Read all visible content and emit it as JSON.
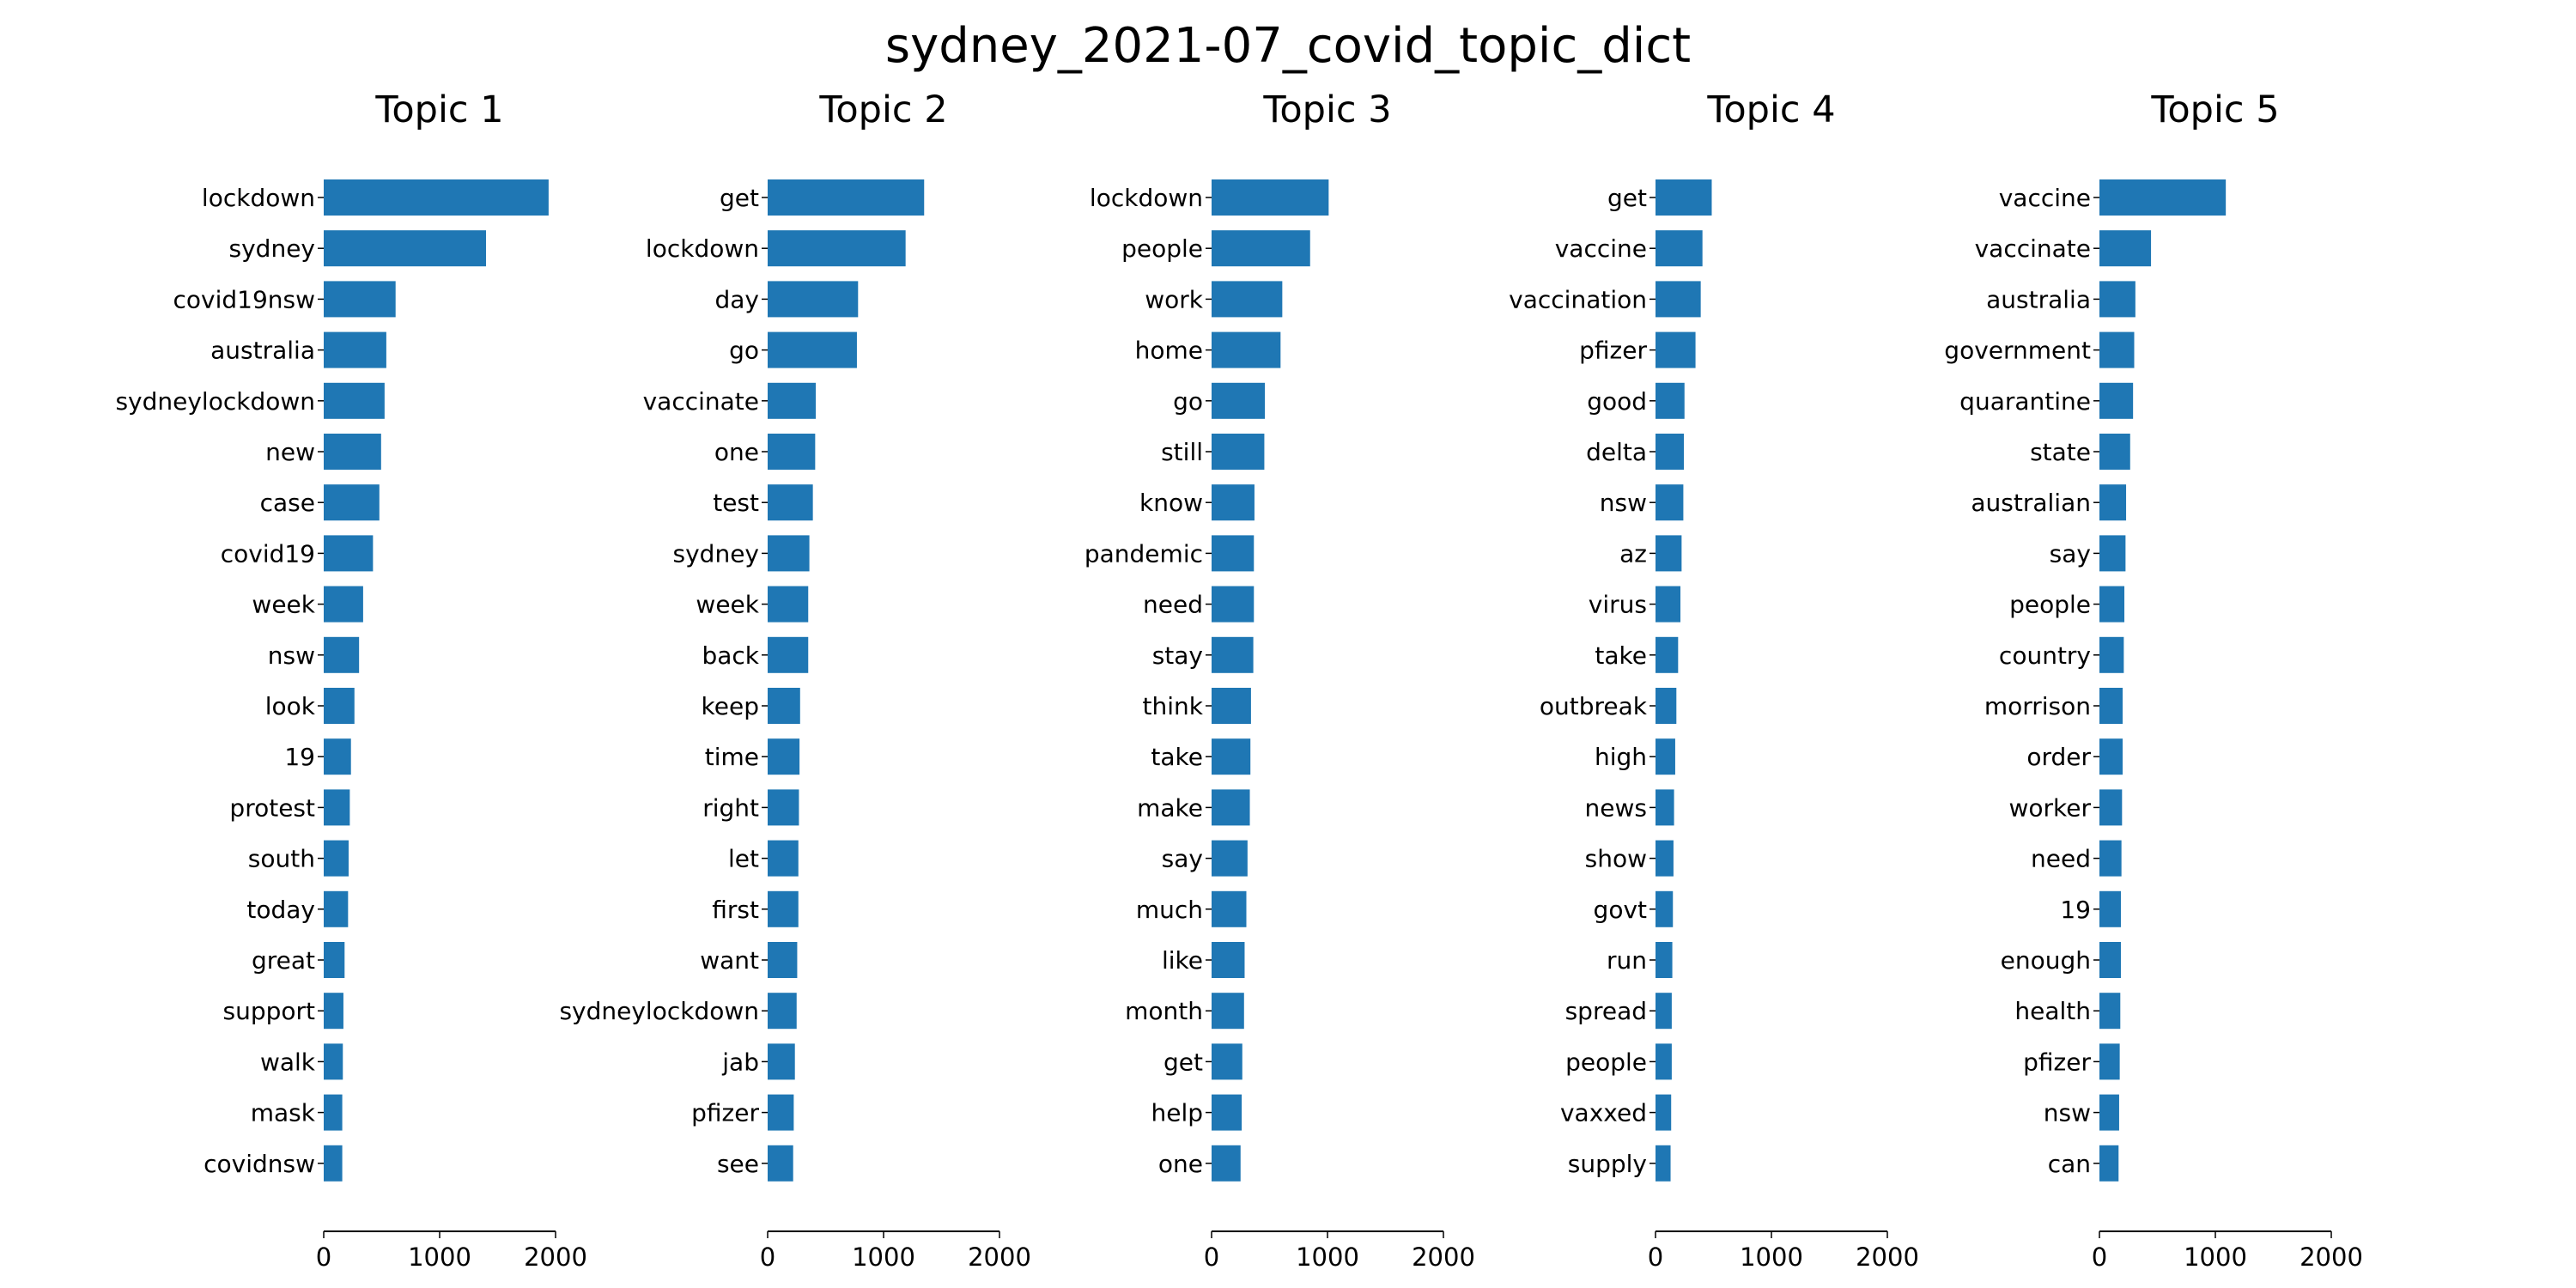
{
  "figure": {
    "title": "sydney_2021-07_covid_topic_dict",
    "bar_color": "#1f77b4"
  },
  "chart_data": [
    {
      "type": "bar",
      "orientation": "horizontal",
      "title": "Topic 1",
      "categories": [
        "lockdown",
        "sydney",
        "covid19nsw",
        "australia",
        "sydneylockdown",
        "new",
        "case",
        "covid19",
        "week",
        "nsw",
        "look",
        "19",
        "protest",
        "south",
        "today",
        "great",
        "support",
        "walk",
        "mask",
        "covidnsw"
      ],
      "values": [
        1940,
        1400,
        620,
        540,
        525,
        495,
        480,
        425,
        340,
        305,
        265,
        235,
        225,
        215,
        210,
        180,
        170,
        165,
        160,
        160
      ],
      "xlim": [
        0,
        2000
      ],
      "xticks": [
        0,
        1000,
        2000
      ],
      "xlabel": "",
      "ylabel": "",
      "grid": false
    },
    {
      "type": "bar",
      "orientation": "horizontal",
      "title": "Topic 2",
      "categories": [
        "get",
        "lockdown",
        "day",
        "go",
        "vaccinate",
        "one",
        "test",
        "sydney",
        "week",
        "back",
        "keep",
        "time",
        "right",
        "let",
        "first",
        "want",
        "sydneylockdown",
        "jab",
        "pfizer",
        "see"
      ],
      "values": [
        1350,
        1190,
        780,
        770,
        415,
        410,
        390,
        360,
        350,
        350,
        280,
        275,
        270,
        265,
        265,
        255,
        250,
        235,
        225,
        220
      ],
      "xlim": [
        0,
        2000
      ],
      "xticks": [
        0,
        1000,
        2000
      ],
      "xlabel": "",
      "ylabel": "",
      "grid": false
    },
    {
      "type": "bar",
      "orientation": "horizontal",
      "title": "Topic 3",
      "categories": [
        "lockdown",
        "people",
        "work",
        "home",
        "go",
        "still",
        "know",
        "pandemic",
        "need",
        "stay",
        "think",
        "take",
        "make",
        "say",
        "much",
        "like",
        "month",
        "get",
        "help",
        "one"
      ],
      "values": [
        1010,
        850,
        610,
        595,
        460,
        455,
        370,
        365,
        365,
        360,
        340,
        335,
        330,
        310,
        300,
        285,
        280,
        265,
        260,
        250
      ],
      "xlim": [
        0,
        2000
      ],
      "xticks": [
        0,
        1000,
        2000
      ],
      "xlabel": "",
      "ylabel": "",
      "grid": false
    },
    {
      "type": "bar",
      "orientation": "horizontal",
      "title": "Topic 4",
      "categories": [
        "get",
        "vaccine",
        "vaccination",
        "pfizer",
        "good",
        "delta",
        "nsw",
        "az",
        "virus",
        "take",
        "outbreak",
        "high",
        "news",
        "show",
        "govt",
        "run",
        "spread",
        "people",
        "vaxxed",
        "supply"
      ],
      "values": [
        485,
        405,
        390,
        345,
        250,
        245,
        240,
        225,
        215,
        195,
        180,
        170,
        160,
        155,
        150,
        145,
        140,
        140,
        135,
        130
      ],
      "xlim": [
        0,
        2000
      ],
      "xticks": [
        0,
        1000,
        2000
      ],
      "xlabel": "",
      "ylabel": "",
      "grid": false
    },
    {
      "type": "bar",
      "orientation": "horizontal",
      "title": "Topic 5",
      "categories": [
        "vaccine",
        "vaccinate",
        "australia",
        "government",
        "quarantine",
        "state",
        "australian",
        "say",
        "people",
        "country",
        "morrison",
        "order",
        "worker",
        "need",
        "19",
        "enough",
        "health",
        "pfizer",
        "nsw",
        "can"
      ],
      "values": [
        1090,
        445,
        310,
        300,
        290,
        265,
        230,
        225,
        215,
        210,
        200,
        200,
        195,
        190,
        185,
        185,
        180,
        175,
        170,
        165
      ],
      "xlim": [
        0,
        2000
      ],
      "xticks": [
        0,
        1000,
        2000
      ],
      "xlabel": "",
      "ylabel": "",
      "grid": false
    }
  ]
}
